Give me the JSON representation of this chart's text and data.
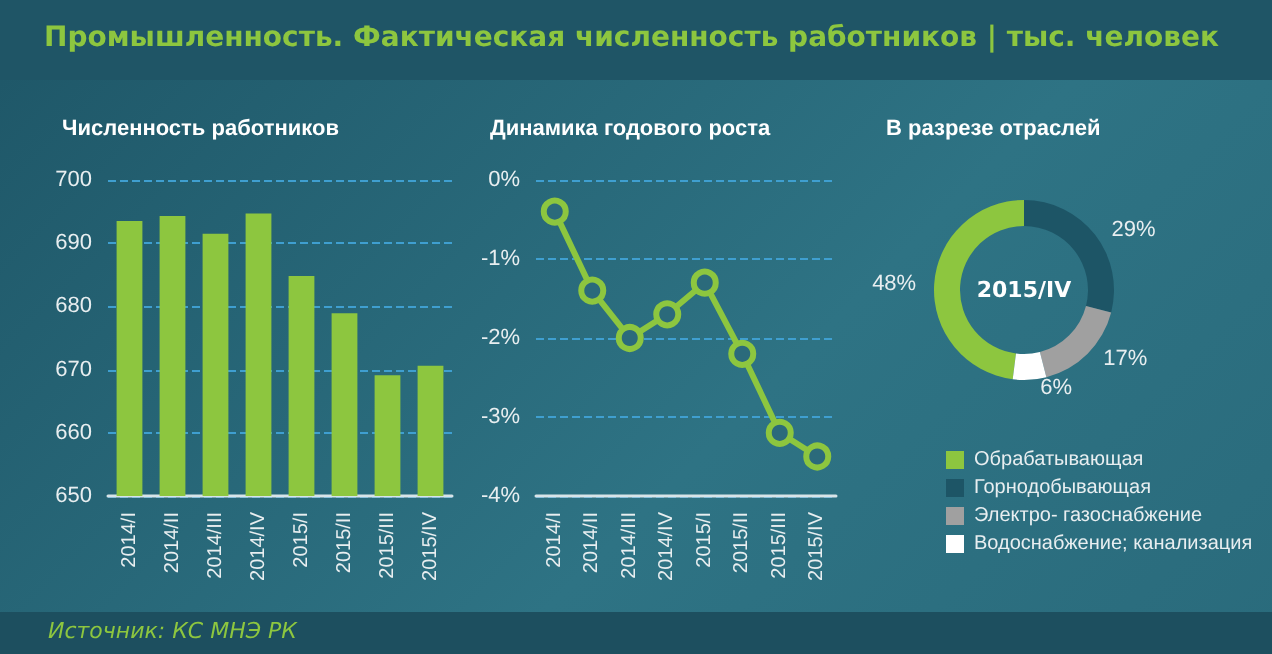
{
  "chart_data": [
    {
      "type": "bar",
      "title": "Промышленность. Фактическая численность работников | тыс. человек",
      "subtitle": "Численность работников",
      "annotations": [
        "Источник: КС МНЭ РК"
      ],
      "categories": [
        "2014/I",
        "2014/II",
        "2014/III",
        "2014/IV",
        "2015/I",
        "2015/II",
        "2015/III",
        "2015/IV"
      ],
      "values": [
        693.5,
        694.3,
        691.5,
        694.7,
        684.8,
        678.9,
        669.1,
        670.6
      ],
      "color": "#8dc63f",
      "ylim": [
        650,
        700
      ],
      "yticks": [
        650,
        660,
        670,
        680,
        690,
        700
      ],
      "grid": "y"
    },
    {
      "type": "line",
      "title": "Динамика годового роста",
      "categories": [
        "2014/I",
        "2014/II",
        "2014/III",
        "2014/IV",
        "2015/I",
        "2015/II",
        "2015/III",
        "2015/IV"
      ],
      "values": [
        -0.4,
        -1.4,
        -2.0,
        -1.7,
        -1.3,
        -2.2,
        -3.2,
        -3.5
      ],
      "color": "#8dc63f",
      "marker": "circle",
      "ylim": [
        -4,
        0
      ],
      "yticks": [
        {
          "value": -4,
          "label": "-4%"
        },
        {
          "value": -3,
          "label": "-3%"
        },
        {
          "value": -2,
          "label": "-2%"
        },
        {
          "value": -1,
          "label": "-1%"
        },
        {
          "value": 0,
          "label": "0%"
        }
      ],
      "grid": "y"
    },
    {
      "type": "donut",
      "title": "В разрезе отраслей",
      "annotations": [
        "2015/IV"
      ],
      "categories": [
        "Обрабатывающая",
        "Горнодобывающая",
        "Электро- газоснабжение",
        "Водоснабжение; канализация"
      ],
      "values": [
        48,
        29,
        17,
        6
      ],
      "colors": [
        "#8dc63f",
        "#1d5566",
        "#a0a0a0",
        "#ffffff"
      ],
      "value_labels": [
        "48%",
        "29%",
        "17%",
        "6%"
      ],
      "legend": "bottom"
    }
  ]
}
